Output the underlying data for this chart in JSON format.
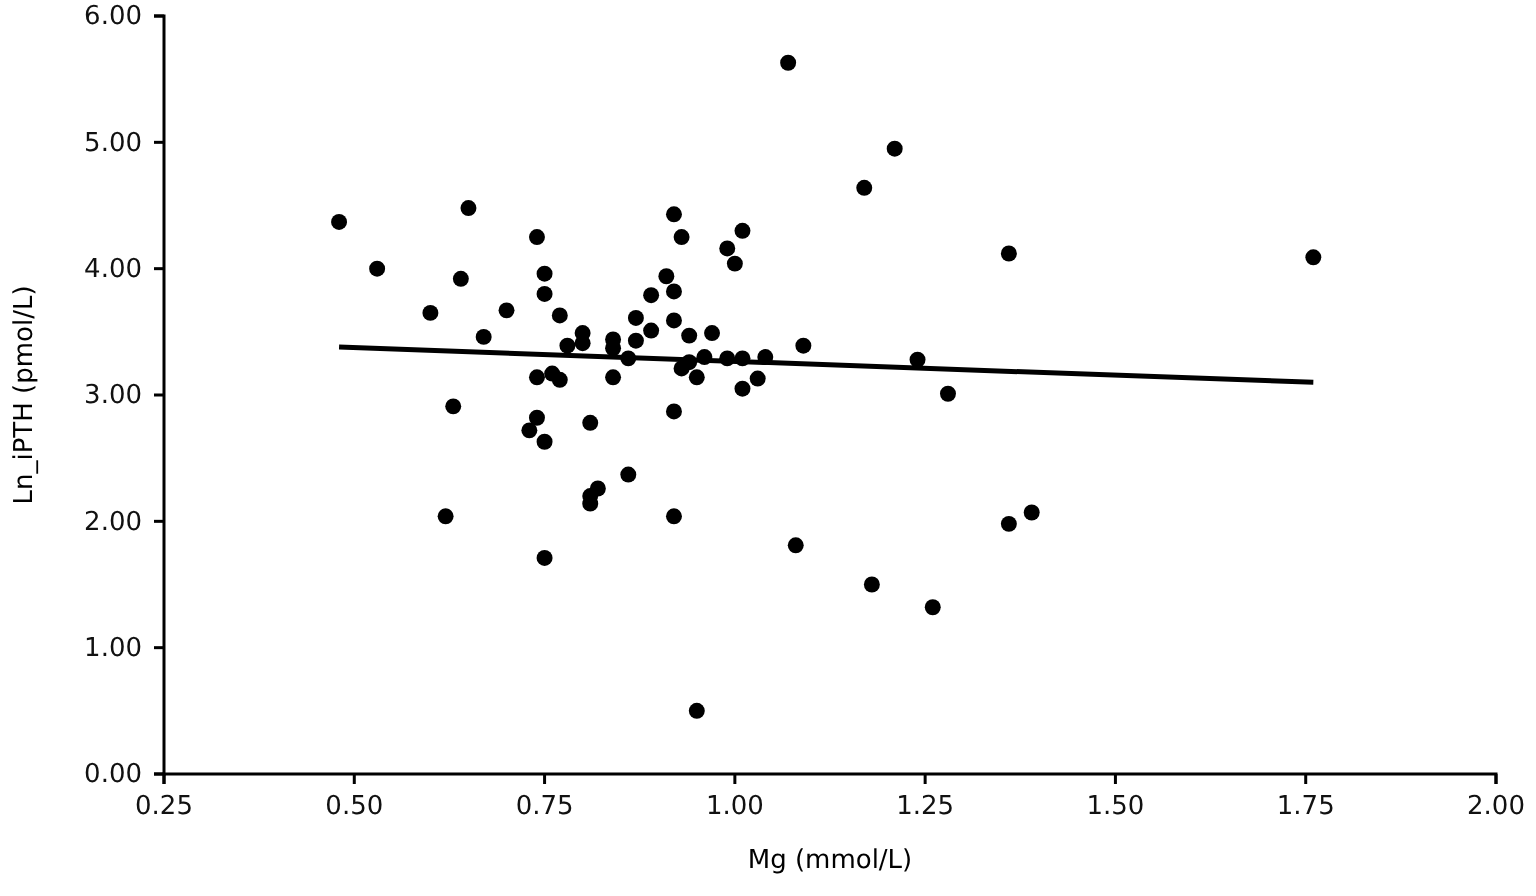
{
  "chart_data": {
    "type": "scatter",
    "xlabel": "Mg (mmol/L)",
    "ylabel": "Ln_iPTH (pmol/L)",
    "xlim": [
      0.25,
      2.0
    ],
    "ylim": [
      0,
      6
    ],
    "xticks": [
      {
        "value": 0.25,
        "label": "0.25"
      },
      {
        "value": 0.5,
        "label": "0.50"
      },
      {
        "value": 0.75,
        "label": "0.75"
      },
      {
        "value": 1.0,
        "label": "1.00"
      },
      {
        "value": 1.25,
        "label": "1.25"
      },
      {
        "value": 1.5,
        "label": "1.50"
      },
      {
        "value": 1.75,
        "label": "1.75"
      },
      {
        "value": 2.0,
        "label": "2.00"
      }
    ],
    "yticks": [
      {
        "value": 0,
        "label": "0.00"
      },
      {
        "value": 1,
        "label": "1.00"
      },
      {
        "value": 2,
        "label": "2.00"
      },
      {
        "value": 3,
        "label": "3.00"
      },
      {
        "value": 4,
        "label": "4.00"
      },
      {
        "value": 5,
        "label": "5.00"
      },
      {
        "value": 6,
        "label": "6.00"
      }
    ],
    "grid": false,
    "series": [
      {
        "marker": "circle",
        "color": "#000000",
        "x": [
          0.48,
          0.65,
          0.53,
          0.64,
          0.6,
          0.7,
          0.67,
          0.74,
          0.75,
          0.75,
          0.77,
          0.78,
          0.8,
          0.8,
          0.84,
          0.84,
          0.86,
          0.87,
          0.87,
          0.89,
          0.89,
          0.91,
          0.92,
          0.93,
          0.92,
          0.92,
          0.94,
          0.93,
          0.95,
          0.94,
          0.96,
          0.97,
          0.99,
          0.99,
          1.0,
          1.01,
          1.01,
          1.03,
          1.01,
          1.04,
          1.09,
          0.74,
          0.76,
          0.77,
          0.84,
          0.63,
          0.74,
          0.73,
          0.75,
          0.81,
          0.92,
          0.86,
          0.82,
          0.81,
          0.81,
          0.62,
          0.92,
          0.75,
          1.08,
          0.95,
          1.07,
          1.21,
          1.17,
          1.36,
          1.76,
          1.24,
          1.28,
          1.36,
          1.39,
          1.18,
          1.26
        ],
        "values": [
          4.37,
          4.48,
          4.0,
          3.92,
          3.65,
          3.67,
          3.46,
          4.25,
          3.96,
          3.8,
          3.63,
          3.39,
          3.49,
          3.41,
          3.44,
          3.37,
          3.29,
          3.61,
          3.43,
          3.79,
          3.51,
          3.94,
          4.43,
          4.25,
          3.82,
          3.59,
          3.47,
          3.21,
          3.14,
          3.26,
          3.3,
          3.49,
          3.29,
          4.16,
          4.04,
          4.3,
          3.29,
          3.13,
          3.05,
          3.3,
          3.39,
          3.14,
          3.17,
          3.12,
          3.14,
          2.91,
          2.82,
          2.72,
          2.63,
          2.78,
          2.87,
          2.37,
          2.26,
          2.2,
          2.14,
          2.04,
          2.04,
          1.71,
          1.81,
          0.5,
          5.63,
          4.95,
          4.64,
          4.12,
          4.09,
          3.28,
          3.01,
          1.98,
          2.07,
          1.5,
          1.32
        ]
      },
      {
        "type": "line",
        "color": "#000000",
        "x": [
          0.48,
          1.76
        ],
        "values": [
          3.38,
          3.1
        ]
      }
    ]
  }
}
